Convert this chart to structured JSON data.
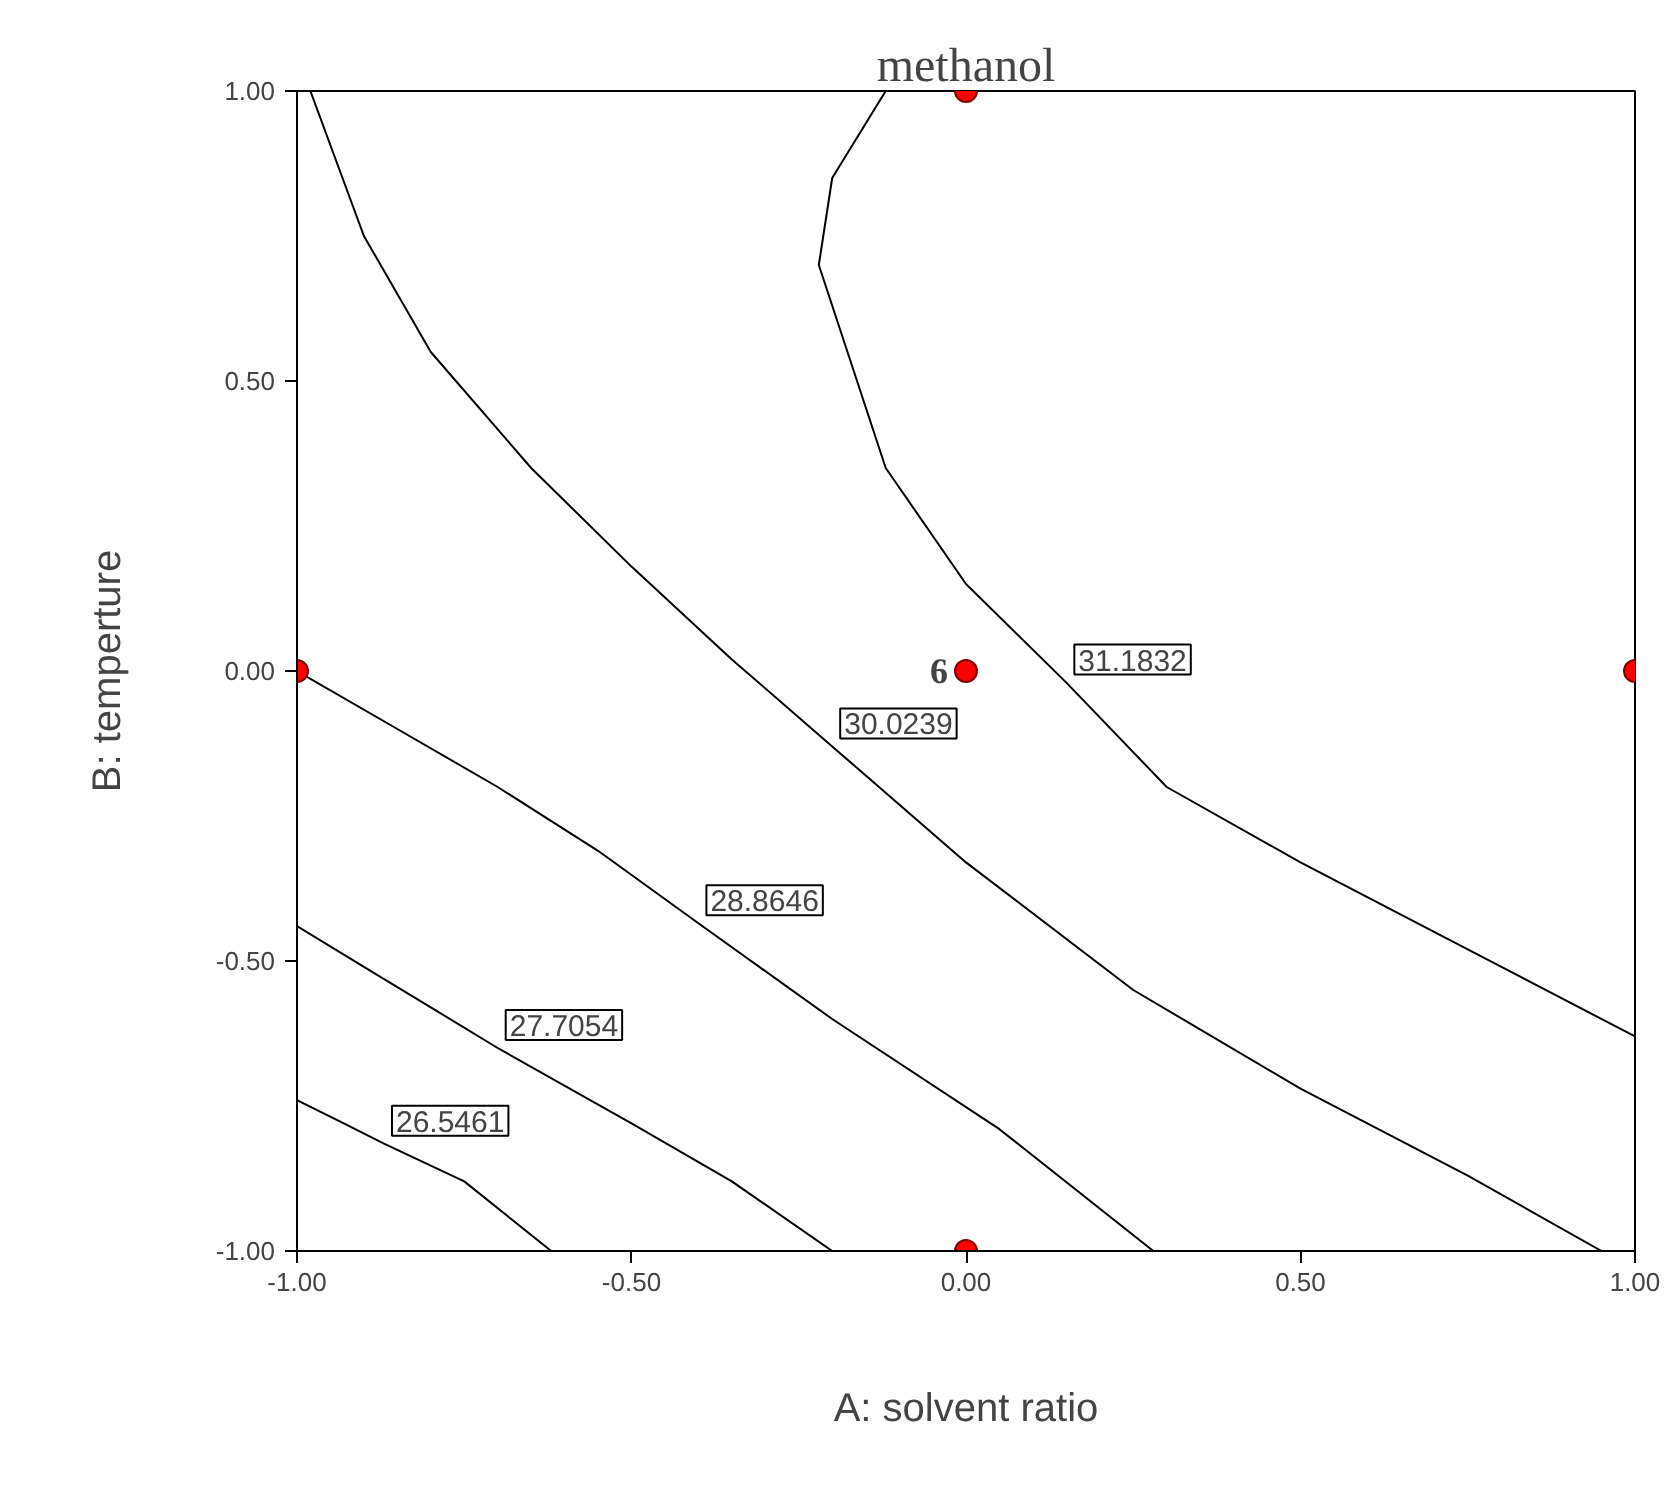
{
  "chart_data": {
    "type": "line",
    "title": "methanol",
    "xlabel": "A: solvent ratio",
    "ylabel": "B: temperture",
    "xlim": [
      -1,
      1
    ],
    "ylim": [
      -1,
      1
    ],
    "xticks": [
      {
        "value": -1,
        "label": "-1.00"
      },
      {
        "value": -0.5,
        "label": "-0.50"
      },
      {
        "value": 0,
        "label": "0.00"
      },
      {
        "value": 0.5,
        "label": "0.50"
      },
      {
        "value": 1,
        "label": "1.00"
      }
    ],
    "yticks": [
      {
        "value": -1,
        "label": "-1.00"
      },
      {
        "value": -0.5,
        "label": "-0.50"
      },
      {
        "value": 0,
        "label": "0.00"
      },
      {
        "value": 0.5,
        "label": "0.50"
      },
      {
        "value": 1,
        "label": "1.00"
      }
    ],
    "grid": false,
    "legend": false,
    "series": [
      {
        "name": "31.1832",
        "color": "#000000",
        "x": [
          -0.12,
          -0.2,
          -0.22,
          -0.12,
          0.0,
          0.15,
          0.3,
          0.5,
          0.75,
          1.0
        ],
        "values": [
          1.0,
          0.85,
          0.7,
          0.35,
          0.15,
          -0.02,
          -0.2,
          -0.33,
          -0.48,
          -0.63
        ]
      },
      {
        "name": "30.0239",
        "color": "#000000",
        "x": [
          -0.98,
          -0.9,
          -0.8,
          -0.65,
          -0.5,
          -0.35,
          -0.2,
          0.0,
          0.25,
          0.5,
          0.75,
          0.95
        ],
        "values": [
          1.0,
          0.75,
          0.55,
          0.35,
          0.18,
          0.02,
          -0.13,
          -0.33,
          -0.55,
          -0.72,
          -0.87,
          -1.0
        ]
      },
      {
        "name": "28.8646",
        "color": "#000000",
        "x": [
          -1.0,
          -0.85,
          -0.7,
          -0.55,
          -0.4,
          -0.2,
          0.05,
          0.28
        ],
        "values": [
          0.0,
          -0.1,
          -0.2,
          -0.31,
          -0.435,
          -0.6,
          -0.79,
          -1.0
        ]
      },
      {
        "name": "27.7054",
        "color": "#000000",
        "x": [
          -1.0,
          -0.9,
          -0.8,
          -0.7,
          -0.5,
          -0.35,
          -0.2
        ],
        "values": [
          -0.44,
          -0.51,
          -0.58,
          -0.65,
          -0.78,
          -0.88,
          -1.0
        ]
      },
      {
        "name": "26.5461",
        "color": "#000000",
        "x": [
          -1.0,
          -0.93,
          -0.87,
          -0.75,
          -0.62
        ],
        "values": [
          -0.74,
          -0.78,
          -0.815,
          -0.88,
          -1.0
        ]
      },
      {
        "type": "scatter",
        "color": "#ff0000",
        "marker": "circle",
        "x": [
          0,
          -1,
          0,
          1,
          0
        ],
        "values": [
          1,
          0,
          0,
          0,
          -1
        ]
      }
    ],
    "annotations": [
      "6"
    ]
  }
}
